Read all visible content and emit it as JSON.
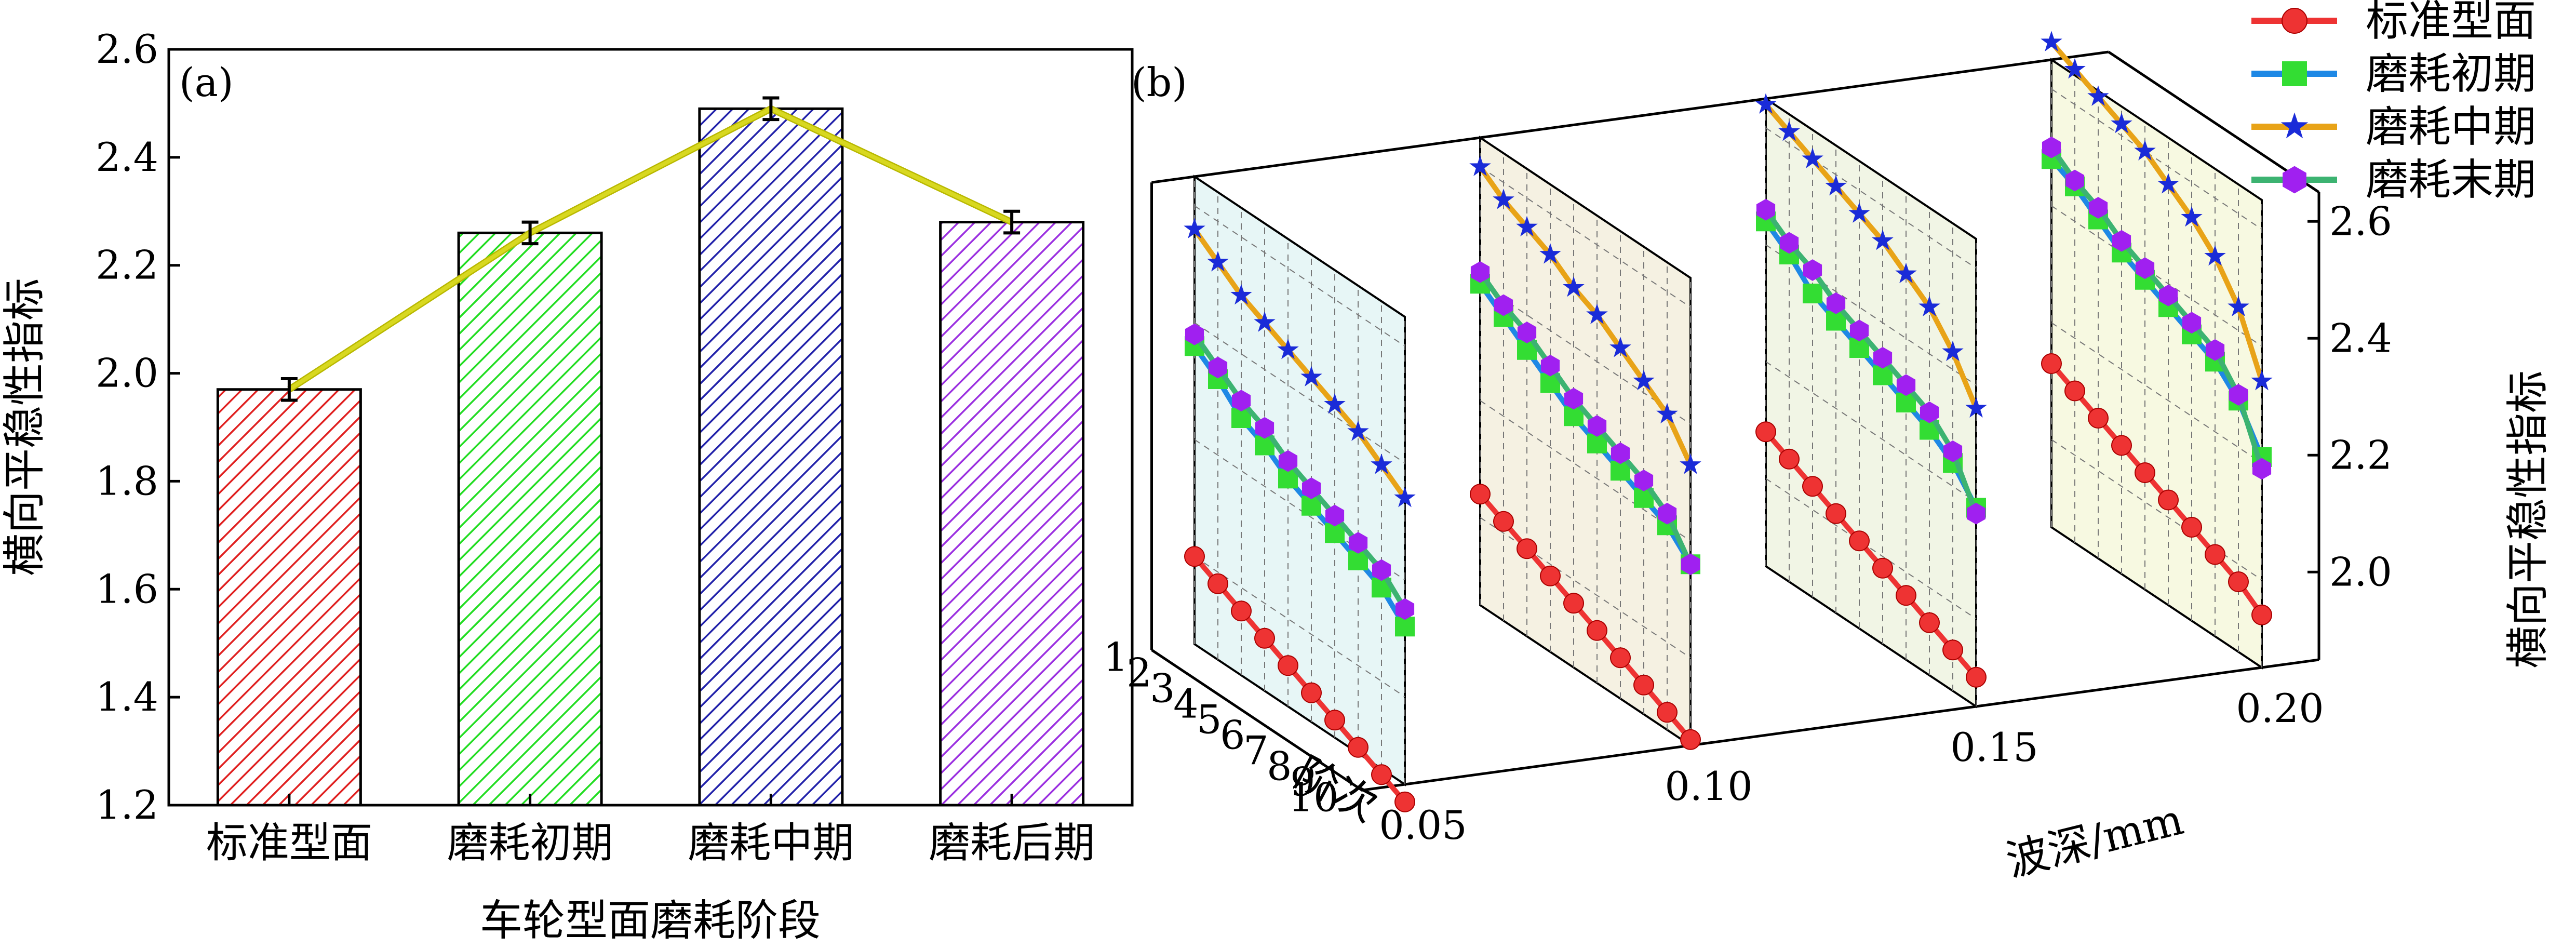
{
  "chart_data": [
    {
      "panel_label": "(a)",
      "type": "bar",
      "categories": [
        "标准型面",
        "磨耗初期",
        "磨耗中期",
        "磨耗后期"
      ],
      "values": [
        1.97,
        2.26,
        2.49,
        2.28
      ],
      "errors": [
        0.02,
        0.02,
        0.02,
        0.02
      ],
      "bar_colors": [
        "#e02020",
        "#22dd22",
        "#2222aa",
        "#9b30e0"
      ],
      "trend_line_color": "#d8d820",
      "xlabel": "车轮型面磨耗阶段",
      "ylabel": "横向平稳性指标",
      "ylim": [
        1.2,
        2.6
      ],
      "yticks": [
        "1.2",
        "1.4",
        "1.6",
        "1.8",
        "2.0",
        "2.2",
        "2.4",
        "2.6"
      ],
      "grid": false
    },
    {
      "panel_label": "(b)",
      "type": "line",
      "projection": "3d",
      "xlabel": "阶次",
      "ylabel": "波深/mm",
      "zlabel": "横向平稳性指标",
      "x_ticks": [
        "1",
        "2",
        "3",
        "4",
        "5",
        "6",
        "7",
        "8",
        "9",
        "10"
      ],
      "y_ticks": [
        "0.05",
        "0.10",
        "0.15",
        "0.20"
      ],
      "z_ticks": [
        "2.0",
        "2.2",
        "2.4",
        "2.6"
      ],
      "zlim": [
        1.85,
        2.65
      ],
      "legend_position": "top-right",
      "series": [
        {
          "name": "标准型面",
          "color": "#ee3333",
          "marker": "circle",
          "values": {
            "0.05": [
              2.0,
              1.98,
              1.96,
              1.94,
              1.92,
              1.9,
              1.88,
              1.86,
              1.84,
              1.82
            ],
            "0.10": [
              2.04,
              2.02,
              2.0,
              1.98,
              1.96,
              1.94,
              1.92,
              1.9,
              1.88,
              1.86
            ],
            "0.15": [
              2.08,
              2.06,
              2.04,
              2.02,
              2.0,
              1.98,
              1.96,
              1.94,
              1.92,
              1.9
            ],
            "0.20": [
              2.13,
              2.11,
              2.09,
              2.07,
              2.05,
              2.03,
              2.01,
              1.99,
              1.97,
              1.94
            ]
          }
        },
        {
          "name": "磨耗初期",
          "color": "#1e88e5",
          "marker": "square",
          "values": {
            "0.05": [
              2.36,
              2.33,
              2.29,
              2.27,
              2.24,
              2.22,
              2.2,
              2.18,
              2.16,
              2.12
            ],
            "0.10": [
              2.4,
              2.37,
              2.34,
              2.31,
              2.28,
              2.26,
              2.24,
              2.22,
              2.2,
              2.16
            ],
            "0.15": [
              2.44,
              2.41,
              2.37,
              2.35,
              2.33,
              2.31,
              2.29,
              2.27,
              2.24,
              2.19
            ],
            "0.20": [
              2.48,
              2.46,
              2.43,
              2.4,
              2.38,
              2.36,
              2.34,
              2.32,
              2.28,
              2.21
            ]
          }
        },
        {
          "name": "磨耗中期",
          "color": "#e8a317",
          "marker": "star",
          "values": {
            "0.05": [
              2.56,
              2.53,
              2.5,
              2.48,
              2.46,
              2.44,
              2.42,
              2.4,
              2.37,
              2.34
            ],
            "0.10": [
              2.6,
              2.57,
              2.55,
              2.53,
              2.5,
              2.48,
              2.45,
              2.42,
              2.39,
              2.33
            ],
            "0.15": [
              2.64,
              2.62,
              2.6,
              2.58,
              2.56,
              2.54,
              2.51,
              2.48,
              2.43,
              2.36
            ],
            "0.20": [
              2.68,
              2.66,
              2.64,
              2.62,
              2.6,
              2.57,
              2.54,
              2.5,
              2.44,
              2.34
            ]
          }
        },
        {
          "name": "磨耗末期",
          "color": "#3cb371",
          "marker": "hexagon",
          "marker_color": "#a020f0",
          "values": {
            "0.05": [
              2.38,
              2.35,
              2.32,
              2.3,
              2.27,
              2.25,
              2.23,
              2.21,
              2.19,
              2.15
            ],
            "0.10": [
              2.42,
              2.39,
              2.37,
              2.34,
              2.31,
              2.29,
              2.27,
              2.25,
              2.22,
              2.16
            ],
            "0.15": [
              2.46,
              2.43,
              2.41,
              2.38,
              2.36,
              2.34,
              2.32,
              2.3,
              2.26,
              2.18
            ],
            "0.20": [
              2.5,
              2.47,
              2.45,
              2.42,
              2.4,
              2.38,
              2.36,
              2.34,
              2.29,
              2.19
            ]
          }
        }
      ]
    }
  ]
}
